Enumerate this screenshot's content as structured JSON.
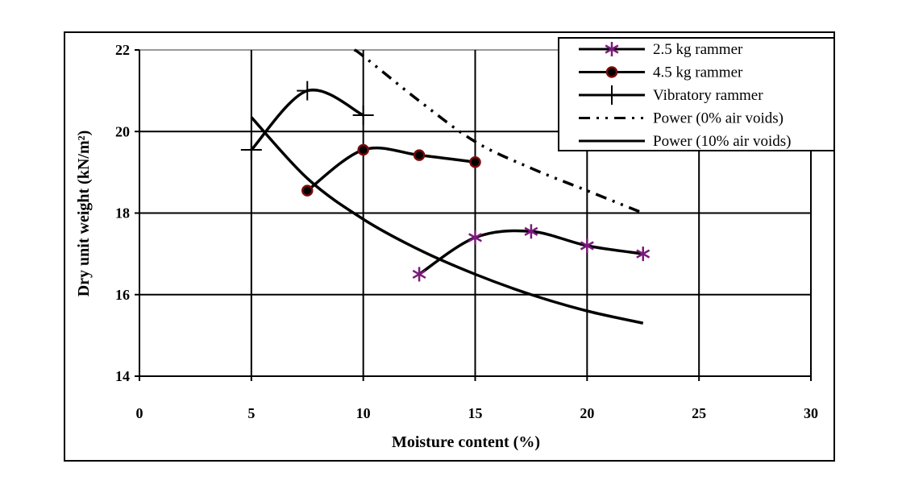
{
  "chart_data": {
    "type": "line",
    "title": "",
    "xlabel": "Moisture content (%)",
    "ylabel": "Dry unit weight (kN/m²)",
    "xlim": [
      0,
      30
    ],
    "ylim": [
      14,
      22
    ],
    "xticks": [
      "0",
      "5",
      "10",
      "15",
      "20",
      "25",
      "30"
    ],
    "yticks": [
      "14",
      "16",
      "18",
      "20",
      "22"
    ],
    "grid": true,
    "legend_position": "top-right",
    "series": [
      {
        "name": "2.5 kg rammer",
        "marker": "asterisk",
        "color": "#7B1A7B",
        "line": "solid",
        "x": [
          12.5,
          15,
          17.5,
          20,
          22.5
        ],
        "y": [
          16.5,
          17.4,
          17.55,
          17.2,
          17.0
        ]
      },
      {
        "name": "4.5 kg rammer",
        "marker": "circle",
        "color": "#7A0A0A",
        "line": "solid",
        "x": [
          7.5,
          10,
          12.5,
          15
        ],
        "y": [
          18.55,
          19.55,
          19.42,
          19.25
        ]
      },
      {
        "name": "Vibratory rammer",
        "marker": "plus",
        "color": "#000000",
        "line": "solid",
        "x": [
          5,
          7.5,
          10
        ],
        "y": [
          19.55,
          21.0,
          20.4
        ]
      },
      {
        "name": "Power (0% air voids)",
        "marker": "none",
        "color": "#000000",
        "line": "dash-dot-dot",
        "x": [
          9.6,
          10,
          12.5,
          15,
          17.5,
          20,
          22.5
        ],
        "y": [
          22.0,
          21.85,
          20.75,
          19.75,
          19.1,
          18.55,
          18.0
        ]
      },
      {
        "name": "Power (10% air voids)",
        "marker": "none",
        "color": "#000000",
        "line": "solid",
        "x": [
          5,
          7.5,
          10,
          12.5,
          15,
          17.5,
          20,
          22.5
        ],
        "y": [
          20.35,
          18.85,
          17.85,
          17.1,
          16.5,
          16.0,
          15.6,
          15.3
        ]
      }
    ]
  }
}
